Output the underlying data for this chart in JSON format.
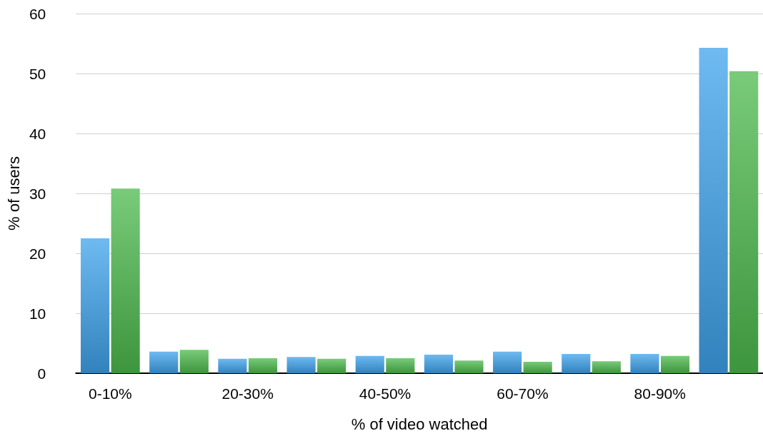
{
  "chart_data": {
    "type": "bar",
    "xlabel": "% of video watched",
    "ylabel": "% of users",
    "categories": [
      "0-10%",
      null,
      "20-30%",
      null,
      "40-50%",
      null,
      "60-70%",
      null,
      "80-90%",
      null
    ],
    "series": [
      {
        "color": "#3ea3ec",
        "values": [
          22.5,
          3.6,
          2.4,
          2.7,
          2.9,
          3.1,
          3.6,
          3.2,
          3.2,
          54.3
        ]
      },
      {
        "color": "#4cba4c",
        "values": [
          30.8,
          3.9,
          2.5,
          2.4,
          2.5,
          2.1,
          1.9,
          2.0,
          2.9,
          50.4
        ]
      }
    ],
    "ylim": [
      0,
      60
    ],
    "yticks": [
      0,
      10,
      20,
      30,
      40,
      50,
      60
    ],
    "grid": "y"
  }
}
